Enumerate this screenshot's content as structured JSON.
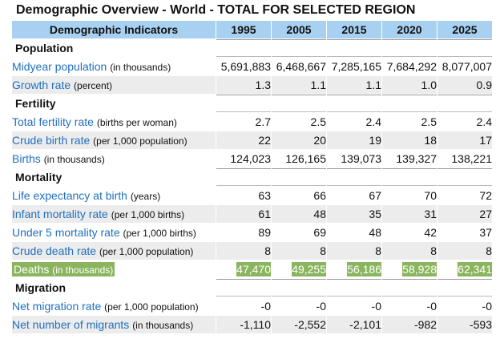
{
  "title": "Demographic Overview - World - TOTAL FOR SELECTED REGION",
  "header": {
    "label": "Demographic Indicators",
    "years": [
      "1995",
      "2005",
      "2015",
      "2020",
      "2025"
    ]
  },
  "sections": [
    {
      "label": "Population",
      "rows": [
        {
          "name": "Midyear population",
          "unit": "(in thousands)",
          "values": [
            "5,691,883",
            "6,468,667",
            "7,285,165",
            "7,684,292",
            "8,077,007"
          ]
        },
        {
          "name": "Growth rate",
          "unit": "(percent)",
          "values": [
            "1.3",
            "1.1",
            "1.1",
            "1.0",
            "0.9"
          ]
        }
      ]
    },
    {
      "label": "Fertility",
      "rows": [
        {
          "name": "Total fertility rate",
          "unit": "(births per woman)",
          "values": [
            "2.7",
            "2.5",
            "2.4",
            "2.5",
            "2.4"
          ]
        },
        {
          "name": "Crude birth rate",
          "unit": "(per 1,000 population)",
          "values": [
            "22",
            "20",
            "19",
            "18",
            "17"
          ]
        },
        {
          "name": "Births",
          "unit": "(in thousands)",
          "values": [
            "124,023",
            "126,165",
            "139,073",
            "139,327",
            "138,221"
          ]
        }
      ]
    },
    {
      "label": "Mortality",
      "rows": [
        {
          "name": "Life expectancy at birth",
          "unit": "(years)",
          "values": [
            "63",
            "66",
            "67",
            "70",
            "72"
          ]
        },
        {
          "name": "Infant mortality rate",
          "unit": "(per 1,000 births)",
          "values": [
            "61",
            "48",
            "35",
            "31",
            "27"
          ]
        },
        {
          "name": "Under 5 mortality rate",
          "unit": "(per 1,000 births)",
          "values": [
            "89",
            "69",
            "48",
            "42",
            "37"
          ]
        },
        {
          "name": "Crude death rate",
          "unit": "(per 1,000 population)",
          "values": [
            "8",
            "8",
            "8",
            "8",
            "8"
          ]
        },
        {
          "name": "Deaths",
          "unit": "(in thousands)",
          "values": [
            "47,470",
            "49,255",
            "56,186",
            "58,928",
            "62,341"
          ],
          "highlighted": true
        }
      ]
    },
    {
      "label": "Migration",
      "rows": [
        {
          "name": "Net migration rate",
          "unit": "(per 1,000 population)",
          "values": [
            "-0",
            "-0",
            "-0",
            "-0",
            "-0"
          ]
        },
        {
          "name": "Net number of migrants",
          "unit": "(in thousands)",
          "values": [
            "-1,110",
            "-2,552",
            "-2,101",
            "-982",
            "-593"
          ]
        }
      ]
    }
  ],
  "colors": {
    "header_bg": "#a8d0f0",
    "link": "#1f6fbf",
    "highlight": "#8ab55e",
    "alt_row": "#ececec"
  }
}
